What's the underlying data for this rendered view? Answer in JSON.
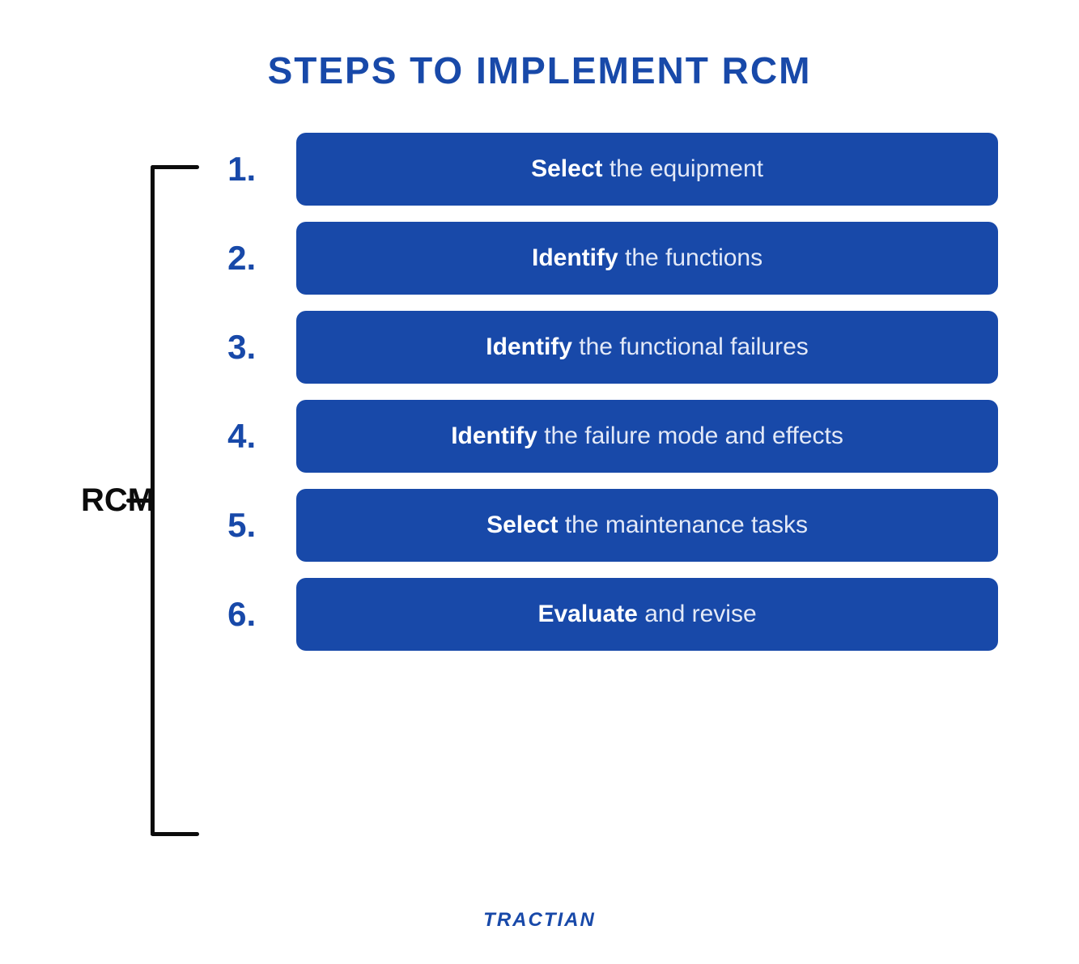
{
  "title": "STEPS TO IMPLEMENT RCM",
  "label": "RCM",
  "brand": "TRACTIAN",
  "colors": {
    "primary": "#1849a9",
    "dark": "#0c0c0c",
    "background": "#ffffff",
    "step_box_bg": "#1849a9",
    "step_text_bold": "#ffffff",
    "step_text_rest": "#e3e9f7",
    "bracket": "#0c0c0c"
  },
  "typography": {
    "title_fontsize": 46,
    "title_weight": 800,
    "label_fontsize": 40,
    "label_weight": 800,
    "number_fontsize": 42,
    "number_weight": 800,
    "step_fontsize": 30,
    "brand_fontsize": 24
  },
  "layout": {
    "box_radius": 12,
    "box_padding_v": 28,
    "step_gap": 20,
    "bracket_width": 60,
    "bracket_thickness": 5
  },
  "steps": [
    {
      "number": "1.",
      "bold": "Select",
      "rest": " the equipment"
    },
    {
      "number": "2.",
      "bold": "Identify",
      "rest": " the functions"
    },
    {
      "number": "3.",
      "bold": "Identify",
      "rest": " the functional failures"
    },
    {
      "number": "4.",
      "bold": "Identify",
      "rest": " the failure mode and effects"
    },
    {
      "number": "5.",
      "bold": "Select",
      "rest": " the maintenance tasks"
    },
    {
      "number": "6.",
      "bold": "Evaluate",
      "rest": " and revise"
    }
  ]
}
